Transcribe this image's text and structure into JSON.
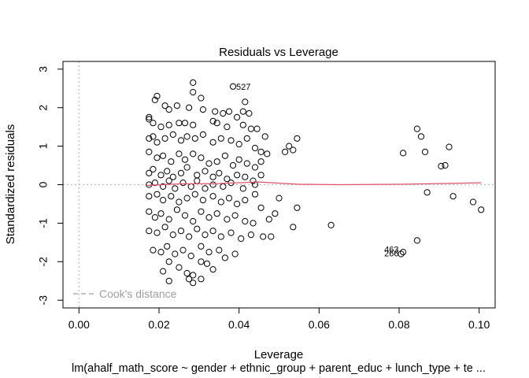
{
  "chart_data": {
    "type": "scatter",
    "title": "Residuals vs Leverage",
    "xlabel": "Leverage",
    "ylabel": "Standardized residuals",
    "subtitle": "lm(ahalf_math_score ~ gender + ethnic_group + parent_educ + lunch_type + te ...",
    "xlim": [
      -0.004,
      0.104
    ],
    "ylim": [
      -3.2,
      3.2
    ],
    "x_ticks": [
      "0.00",
      "0.02",
      "0.04",
      "0.06",
      "0.08",
      "0.10"
    ],
    "y_ticks": [
      "-3",
      "-2",
      "-1",
      "0",
      "1",
      "2",
      "3"
    ],
    "legend": {
      "label": "Cook's distance",
      "placement": "bottom-left",
      "color": "#9e9e9e"
    },
    "point_color": "#000000",
    "smoother_color": "#df536b",
    "reference_line_color": "#bdbdbd",
    "labeled_points": [
      {
        "label": "527",
        "x": 0.0385,
        "y": 2.55
      },
      {
        "label": "463",
        "x": 0.081,
        "y": -1.74
      },
      {
        "label": "266",
        "x": 0.081,
        "y": -1.8
      }
    ],
    "smoother": [
      {
        "x": 0.017,
        "y": -0.02
      },
      {
        "x": 0.025,
        "y": 0.02
      },
      {
        "x": 0.035,
        "y": 0.03
      },
      {
        "x": 0.045,
        "y": 0.07
      },
      {
        "x": 0.055,
        "y": 0.01
      },
      {
        "x": 0.065,
        "y": 0.0
      },
      {
        "x": 0.08,
        "y": 0.01
      },
      {
        "x": 0.1005,
        "y": 0.05
      }
    ],
    "points": [
      [
        0.0385,
        2.55
      ],
      [
        0.0285,
        2.65
      ],
      [
        0.0285,
        2.4
      ],
      [
        0.0195,
        2.3
      ],
      [
        0.019,
        2.2
      ],
      [
        0.0305,
        2.25
      ],
      [
        0.0415,
        2.15
      ],
      [
        0.041,
        1.9
      ],
      [
        0.0375,
        1.9
      ],
      [
        0.0215,
        2.05
      ],
      [
        0.0225,
        1.95
      ],
      [
        0.0245,
        2.05
      ],
      [
        0.0275,
        2.0
      ],
      [
        0.031,
        1.95
      ],
      [
        0.034,
        1.9
      ],
      [
        0.036,
        1.85
      ],
      [
        0.0395,
        1.75
      ],
      [
        0.0425,
        1.85
      ],
      [
        0.0445,
        1.45
      ],
      [
        0.0465,
        1.25
      ],
      [
        0.0175,
        1.75
      ],
      [
        0.0175,
        1.7
      ],
      [
        0.0185,
        1.6
      ],
      [
        0.0205,
        1.5
      ],
      [
        0.0225,
        1.55
      ],
      [
        0.025,
        1.6
      ],
      [
        0.0265,
        1.6
      ],
      [
        0.0285,
        1.55
      ],
      [
        0.0335,
        1.65
      ],
      [
        0.0345,
        1.6
      ],
      [
        0.037,
        1.5
      ],
      [
        0.041,
        1.55
      ],
      [
        0.043,
        1.45
      ],
      [
        0.0175,
        1.2
      ],
      [
        0.0185,
        1.25
      ],
      [
        0.0195,
        1.1
      ],
      [
        0.0215,
        1.2
      ],
      [
        0.0235,
        1.3
      ],
      [
        0.0255,
        1.15
      ],
      [
        0.027,
        1.25
      ],
      [
        0.029,
        1.2
      ],
      [
        0.031,
        1.3
      ],
      [
        0.0335,
        1.1
      ],
      [
        0.0355,
        1.2
      ],
      [
        0.038,
        1.15
      ],
      [
        0.04,
        1.05
      ],
      [
        0.042,
        1.2
      ],
      [
        0.044,
        0.95
      ],
      [
        0.0455,
        0.85
      ],
      [
        0.047,
        0.8
      ],
      [
        0.0525,
        1.0
      ],
      [
        0.0545,
        1.2
      ],
      [
        0.0535,
        0.9
      ],
      [
        0.0515,
        0.85
      ],
      [
        0.0175,
        0.85
      ],
      [
        0.0195,
        0.7
      ],
      [
        0.021,
        0.75
      ],
      [
        0.023,
        0.6
      ],
      [
        0.025,
        0.8
      ],
      [
        0.0265,
        0.65
      ],
      [
        0.0285,
        0.8
      ],
      [
        0.0305,
        0.7
      ],
      [
        0.0325,
        0.55
      ],
      [
        0.0345,
        0.6
      ],
      [
        0.0365,
        0.75
      ],
      [
        0.0385,
        0.5
      ],
      [
        0.04,
        0.65
      ],
      [
        0.042,
        0.55
      ],
      [
        0.044,
        0.45
      ],
      [
        0.0455,
        0.6
      ],
      [
        0.0175,
        0.3
      ],
      [
        0.0185,
        0.4
      ],
      [
        0.0205,
        0.25
      ],
      [
        0.022,
        0.35
      ],
      [
        0.0235,
        0.2
      ],
      [
        0.0255,
        0.3
      ],
      [
        0.027,
        0.45
      ],
      [
        0.0295,
        0.25
      ],
      [
        0.0315,
        0.35
      ],
      [
        0.0335,
        0.2
      ],
      [
        0.035,
        0.3
      ],
      [
        0.037,
        0.15
      ],
      [
        0.0395,
        0.25
      ],
      [
        0.0415,
        0.2
      ],
      [
        0.0435,
        0.1
      ],
      [
        0.0455,
        0.25
      ],
      [
        0.0175,
        0.0
      ],
      [
        0.019,
        0.05
      ],
      [
        0.021,
        -0.05
      ],
      [
        0.0225,
        0.1
      ],
      [
        0.024,
        -0.1
      ],
      [
        0.026,
        0.05
      ],
      [
        0.028,
        -0.05
      ],
      [
        0.0295,
        0.1
      ],
      [
        0.0315,
        -0.1
      ],
      [
        0.0335,
        0.0
      ],
      [
        0.036,
        -0.05
      ],
      [
        0.038,
        0.05
      ],
      [
        0.041,
        -0.1
      ],
      [
        0.044,
        0.0
      ],
      [
        0.0175,
        -0.3
      ],
      [
        0.0195,
        -0.25
      ],
      [
        0.021,
        -0.4
      ],
      [
        0.023,
        -0.3
      ],
      [
        0.025,
        -0.45
      ],
      [
        0.027,
        -0.35
      ],
      [
        0.029,
        -0.25
      ],
      [
        0.031,
        -0.4
      ],
      [
        0.0335,
        -0.3
      ],
      [
        0.0355,
        -0.45
      ],
      [
        0.0375,
        -0.35
      ],
      [
        0.0395,
        -0.5
      ],
      [
        0.0415,
        -0.4
      ],
      [
        0.044,
        -0.25
      ],
      [
        0.0455,
        -0.6
      ],
      [
        0.0175,
        -0.7
      ],
      [
        0.019,
        -0.85
      ],
      [
        0.0205,
        -0.75
      ],
      [
        0.0225,
        -0.9
      ],
      [
        0.0245,
        -0.65
      ],
      [
        0.0265,
        -0.8
      ],
      [
        0.0285,
        -0.95
      ],
      [
        0.0305,
        -0.7
      ],
      [
        0.0325,
        -0.85
      ],
      [
        0.0345,
        -0.75
      ],
      [
        0.037,
        -0.9
      ],
      [
        0.039,
        -0.8
      ],
      [
        0.0415,
        -0.95
      ],
      [
        0.0435,
        -1.0
      ],
      [
        0.0475,
        -0.9
      ],
      [
        0.0175,
        -1.2
      ],
      [
        0.0195,
        -1.25
      ],
      [
        0.0215,
        -1.1
      ],
      [
        0.0235,
        -1.3
      ],
      [
        0.0255,
        -1.2
      ],
      [
        0.0275,
        -1.35
      ],
      [
        0.0295,
        -1.15
      ],
      [
        0.0315,
        -1.3
      ],
      [
        0.0335,
        -1.2
      ],
      [
        0.0355,
        -1.35
      ],
      [
        0.038,
        -1.25
      ],
      [
        0.0405,
        -1.4
      ],
      [
        0.043,
        -1.3
      ],
      [
        0.046,
        -1.35
      ],
      [
        0.048,
        -1.35
      ],
      [
        0.0185,
        -1.7
      ],
      [
        0.0205,
        -1.75
      ],
      [
        0.022,
        -1.6
      ],
      [
        0.024,
        -1.8
      ],
      [
        0.026,
        -1.7
      ],
      [
        0.028,
        -1.85
      ],
      [
        0.0305,
        -1.6
      ],
      [
        0.0325,
        -1.75
      ],
      [
        0.035,
        -1.7
      ],
      [
        0.0365,
        -1.9
      ],
      [
        0.039,
        -1.8
      ],
      [
        0.021,
        -2.25
      ],
      [
        0.0225,
        -2.0
      ],
      [
        0.025,
        -2.15
      ],
      [
        0.027,
        -2.3
      ],
      [
        0.0285,
        -2.35
      ],
      [
        0.0305,
        -2.0
      ],
      [
        0.032,
        -2.05
      ],
      [
        0.0335,
        -2.2
      ],
      [
        0.0225,
        -2.5
      ],
      [
        0.0275,
        -2.45
      ],
      [
        0.0285,
        -2.55
      ],
      [
        0.0305,
        -2.45
      ],
      [
        0.0845,
        1.45
      ],
      [
        0.0855,
        1.25
      ],
      [
        0.0925,
        0.98
      ],
      [
        0.0865,
        0.85
      ],
      [
        0.081,
        0.82
      ],
      [
        0.0905,
        0.48
      ],
      [
        0.0915,
        0.5
      ],
      [
        0.0935,
        -0.3
      ],
      [
        0.087,
        -0.2
      ],
      [
        0.0985,
        -0.45
      ],
      [
        0.1005,
        -0.65
      ],
      [
        0.0845,
        -1.45
      ],
      [
        0.081,
        -1.75
      ],
      [
        0.0805,
        -1.8
      ],
      [
        0.063,
        -1.05
      ],
      [
        0.0545,
        -0.6
      ],
      [
        0.0535,
        -1.1
      ],
      [
        0.049,
        -0.75
      ],
      [
        0.05,
        -0.35
      ]
    ]
  }
}
